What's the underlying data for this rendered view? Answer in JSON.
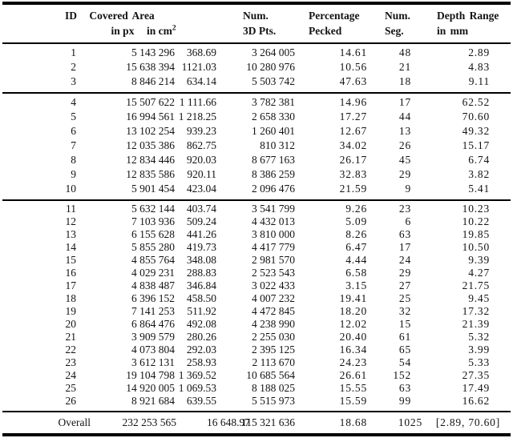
{
  "page": {
    "background": "#ffffff",
    "text_color": "#131313",
    "rule_color": "#000000"
  },
  "header": {
    "id": "ID",
    "covered_area": "Covered Area",
    "in_px": "in px",
    "in_cm": "in cm",
    "cm_superscript": "2",
    "num_3d": "Num.",
    "pts_3d": "3D Pts.",
    "percentage": "Percentage",
    "pecked": "Pecked",
    "num_seg": "Num.",
    "seg": "Seg.",
    "depth_range": "Depth Range",
    "in_mm": "in mm"
  },
  "groups": [
    {
      "rows": [
        [
          "1",
          "5 143 296",
          "368.69",
          "3 264 005",
          "14.61",
          "48",
          "2.89"
        ],
        [
          "2",
          "15 638 394",
          "1121.03",
          "10 280 976",
          "10.56",
          "21",
          "4.83"
        ],
        [
          "3",
          "8 846 214",
          "634.14",
          "5 503 742",
          "47.63",
          "18",
          "9.11"
        ]
      ]
    },
    {
      "rows": [
        [
          "4",
          "15 507 622",
          "1 111.66",
          "3 782 381",
          "14.96",
          "17",
          "62.52"
        ],
        [
          "5",
          "16 994 561",
          "1 218.25",
          "2 658 330",
          "17.27",
          "44",
          "70.60"
        ],
        [
          "6",
          "13 102 254",
          "939.23",
          "1 260 401",
          "12.67",
          "13",
          "49.32"
        ],
        [
          "7",
          "12 035 386",
          "862.75",
          "810 312",
          "34.02",
          "26",
          "15.17"
        ],
        [
          "8",
          "12 834 446",
          "920.03",
          "8 677 163",
          "26.17",
          "45",
          "6.74"
        ],
        [
          "9",
          "12 835 586",
          "920.11",
          "8 386 259",
          "32.83",
          "29",
          "3.82"
        ],
        [
          "10",
          "5 901 454",
          "423.04",
          "2 096 476",
          "21.59",
          "9",
          "5.41"
        ]
      ]
    },
    {
      "rows": [
        [
          "11",
          "5 632 144",
          "403.74",
          "3 541 799",
          "9.26",
          "23",
          "10.23"
        ],
        [
          "12",
          "7 103 936",
          "509.24",
          "4 432 013",
          "5.09",
          "6",
          "10.22"
        ],
        [
          "13",
          "6 155 628",
          "441.26",
          "3 810 000",
          "8.26",
          "63",
          "19.85"
        ],
        [
          "14",
          "5 855 280",
          "419.73",
          "4 417 779",
          "6.47",
          "17",
          "10.50"
        ],
        [
          "15",
          "4 855 764",
          "348.08",
          "2 981 570",
          "4.44",
          "24",
          "9.39"
        ],
        [
          "16",
          "4 029 231",
          "288.83",
          "2 523 543",
          "6.58",
          "29",
          "4.27"
        ],
        [
          "17",
          "4 838 487",
          "346.84",
          "3 022 433",
          "3.15",
          "27",
          "21.75"
        ],
        [
          "18",
          "6 396 152",
          "458.50",
          "4 007 232",
          "19.41",
          "25",
          "9.45"
        ],
        [
          "19",
          "7 141 253",
          "511.92",
          "4 472 845",
          "18.20",
          "32",
          "17.32"
        ],
        [
          "20",
          "6 864 476",
          "492.08",
          "4 238 990",
          "12.02",
          "15",
          "21.39"
        ],
        [
          "21",
          "3 909 579",
          "280.26",
          "2 255 030",
          "20.40",
          "61",
          "5.32"
        ],
        [
          "22",
          "4 073 804",
          "292.03",
          "2 395 125",
          "16.34",
          "65",
          "3.99"
        ],
        [
          "23",
          "3 612 131",
          "258.93",
          "2 113 670",
          "24.23",
          "54",
          "5.33"
        ],
        [
          "24",
          "19 104 798",
          "1 369.52",
          "10 685 564",
          "26.61",
          "152",
          "27.35"
        ],
        [
          "25",
          "14 920 005",
          "1 069.53",
          "8 188 025",
          "15.55",
          "63",
          "17.49"
        ],
        [
          "26",
          "8 921 684",
          "639.55",
          "5 515 973",
          "15.59",
          "99",
          "16.62"
        ]
      ]
    }
  ],
  "overall": [
    "Overall",
    "232 253 565",
    "16 648.97",
    "115 321 636",
    "18.68",
    "1025",
    "[2.89, 70.60]"
  ]
}
